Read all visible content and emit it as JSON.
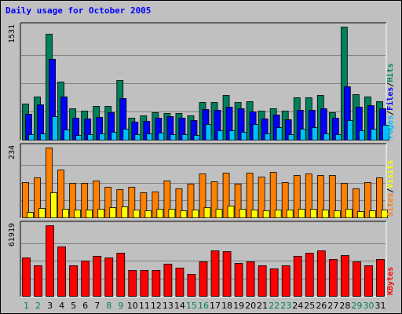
{
  "chart_data": {
    "type": "bar",
    "title": "Daily usage for October 2005",
    "categories": [
      "1",
      "2",
      "3",
      "4",
      "5",
      "6",
      "7",
      "8",
      "9",
      "10",
      "11",
      "12",
      "13",
      "14",
      "15",
      "16",
      "17",
      "18",
      "19",
      "20",
      "21",
      "22",
      "23",
      "24",
      "25",
      "26",
      "27",
      "28",
      "29",
      "30",
      "31"
    ],
    "weekend_days": [
      "1",
      "2",
      "8",
      "9",
      "15",
      "16",
      "22",
      "23",
      "29",
      "30"
    ],
    "colors": {
      "hits": "#00805c",
      "files": "#0000ff",
      "pages": "#00c0ff",
      "visits": "#ffff00",
      "sites": "#ff8000",
      "kbytes": "#ff0000",
      "weekday_label": "#000000",
      "weekend_label": "#00805c",
      "title": "#0000ff"
    },
    "panels": [
      {
        "id": "requests",
        "ymax_label": "1531",
        "ymax": 1531,
        "legend": [
          {
            "text": "Pages",
            "color": "#00c0ff"
          },
          {
            "text": "/",
            "color": "#000000"
          },
          {
            "text": "Files",
            "color": "#0000ff"
          },
          {
            "text": "/",
            "color": "#000000"
          },
          {
            "text": "Hits",
            "color": "#00805c"
          }
        ],
        "series": [
          {
            "name": "Hits",
            "color": "#00805c",
            "values": [
              490,
              590,
              1430,
              790,
              420,
              390,
              460,
              460,
              810,
              300,
              330,
              370,
              360,
              360,
              330,
              510,
              510,
              610,
              510,
              520,
              390,
              420,
              390,
              570,
              570,
              610,
              370,
              1531,
              620,
              590,
              520
            ]
          },
          {
            "name": "Files",
            "color": "#0000ff",
            "values": [
              350,
              480,
              1090,
              580,
              300,
              290,
              310,
              370,
              560,
              240,
              250,
              300,
              320,
              300,
              270,
              410,
              400,
              450,
              420,
              380,
              290,
              340,
              280,
              400,
              400,
              430,
              300,
              720,
              450,
              470,
              420
            ]
          },
          {
            "name": "Pages",
            "color": "#00c0ff",
            "values": [
              70,
              90,
              320,
              140,
              60,
              70,
              90,
              110,
              150,
              70,
              90,
              100,
              70,
              70,
              60,
              210,
              130,
              130,
              110,
              210,
              80,
              170,
              70,
              150,
              170,
              90,
              70,
              270,
              130,
              150,
              200
            ]
          }
        ]
      },
      {
        "id": "visitors",
        "ymax_label": "234",
        "ymax": 234,
        "legend": [
          {
            "text": "Sites",
            "color": "#ff8000"
          },
          {
            "text": "/",
            "color": "#000000"
          },
          {
            "text": "Visits",
            "color": "#ffff00"
          }
        ],
        "series": [
          {
            "name": "Sites",
            "color": "#ff8000",
            "values": [
              119,
              135,
              234,
              160,
              115,
              115,
              124,
              103,
              95,
              103,
              84,
              86,
              124,
              98,
              113,
              147,
              120,
              150,
              114,
              151,
              137,
              152,
              118,
              143,
              146,
              141,
              141,
              116,
              98,
              118,
              135
            ]
          },
          {
            "name": "Visits",
            "color": "#ffff00",
            "values": [
              19,
              31,
              84,
              29,
              26,
              25,
              30,
              34,
              38,
              25,
              24,
              30,
              29,
              23,
              25,
              33,
              28,
              39,
              28,
              26,
              24,
              27,
              25,
              28,
              30,
              26,
              23,
              28,
              20,
              24,
              26
            ]
          }
        ]
      },
      {
        "id": "volume",
        "ymax_label": "61919",
        "ymax": 61919,
        "legend": [
          {
            "text": "KBytes",
            "color": "#ff0000"
          }
        ],
        "series": [
          {
            "name": "KBytes",
            "color": "#ff0000",
            "values": [
              34000,
              27000,
              61919,
              43000,
              27000,
              31000,
              35000,
              34000,
              38000,
              23000,
              23000,
              23000,
              28000,
              25000,
              19000,
              30000,
              40000,
              39000,
              29000,
              30000,
              27000,
              24000,
              27000,
              35000,
              38000,
              40000,
              32000,
              36000,
              30000,
              27000,
              32000
            ]
          }
        ]
      }
    ]
  }
}
